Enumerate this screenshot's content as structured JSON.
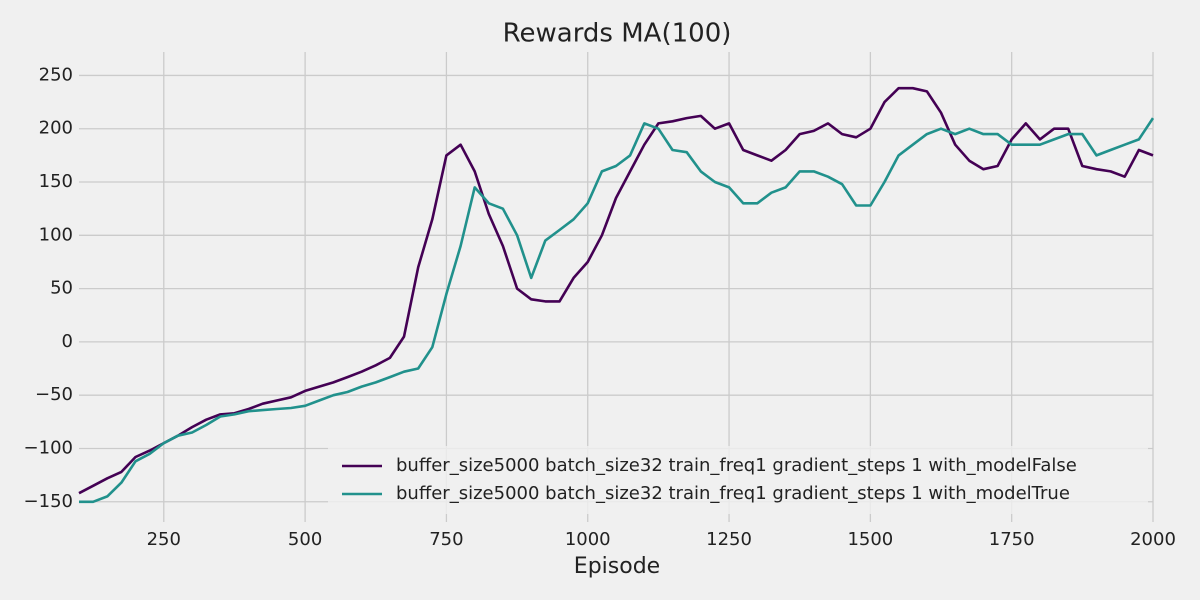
{
  "chart_data": {
    "type": "line",
    "title": "Rewards MA(100)",
    "x_label": "Episode",
    "x": [
      100,
      125,
      150,
      175,
      200,
      225,
      250,
      275,
      300,
      325,
      350,
      375,
      400,
      425,
      450,
      475,
      500,
      525,
      550,
      575,
      600,
      625,
      650,
      675,
      700,
      725,
      750,
      775,
      800,
      825,
      850,
      875,
      900,
      925,
      950,
      975,
      1000,
      1025,
      1050,
      1075,
      1100,
      1125,
      1150,
      1175,
      1200,
      1225,
      1250,
      1275,
      1300,
      1325,
      1350,
      1375,
      1400,
      1425,
      1450,
      1475,
      1500,
      1525,
      1550,
      1575,
      1600,
      1625,
      1650,
      1675,
      1700,
      1725,
      1750,
      1775,
      1800,
      1825,
      1850,
      1875,
      1900,
      1925,
      1950,
      1975,
      2000
    ],
    "series": [
      {
        "name": "buffer_size5000 batch_size32 train_freq1 gradient_steps 1 with_modelFalse",
        "color": "#440154",
        "values": [
          -142,
          -135,
          -128,
          -122,
          -108,
          -102,
          -95,
          -88,
          -80,
          -73,
          -68,
          -67,
          -63,
          -58,
          -55,
          -52,
          -46,
          -42,
          -38,
          -33,
          -28,
          -22,
          -15,
          5,
          70,
          115,
          175,
          185,
          160,
          120,
          90,
          50,
          40,
          38,
          38,
          60,
          75,
          100,
          135,
          160,
          185,
          205,
          207,
          210,
          212,
          200,
          205,
          180,
          175,
          170,
          180,
          195,
          198,
          205,
          195,
          192,
          200,
          225,
          238,
          238,
          235,
          215,
          185,
          170,
          162,
          165,
          190,
          205,
          190,
          200,
          200,
          165,
          162,
          160,
          155,
          180,
          175
        ]
      },
      {
        "name": "buffer_size5000 batch_size32 train_freq1 gradient_steps 1 with_modelTrue",
        "color": "#21918c",
        "values": [
          -150,
          -150,
          -145,
          -132,
          -112,
          -105,
          -95,
          -88,
          -85,
          -78,
          -70,
          -68,
          -65,
          -64,
          -63,
          -62,
          -60,
          -55,
          -50,
          -47,
          -42,
          -38,
          -33,
          -28,
          -25,
          -5,
          45,
          90,
          145,
          130,
          125,
          100,
          60,
          95,
          105,
          115,
          130,
          160,
          165,
          175,
          205,
          200,
          180,
          178,
          160,
          150,
          145,
          130,
          130,
          140,
          145,
          160,
          160,
          155,
          148,
          128,
          128,
          150,
          175,
          185,
          195,
          200,
          195,
          200,
          195,
          195,
          185,
          185,
          185,
          190,
          195,
          195,
          175,
          180,
          185,
          190,
          210
        ]
      }
    ],
    "xlim": [
      100,
      2000
    ],
    "xticks": [
      250,
      500,
      750,
      1000,
      1250,
      1500,
      1750,
      2000
    ],
    "ylim": [
      -169,
      272
    ],
    "yticks": [
      {
        "value": -150,
        "label": "−150"
      },
      {
        "value": -100,
        "label": "−100"
      },
      {
        "value": -50,
        "label": "−50"
      },
      0,
      50,
      100,
      150,
      200,
      250
    ],
    "grid": true,
    "legend": "lower right"
  }
}
